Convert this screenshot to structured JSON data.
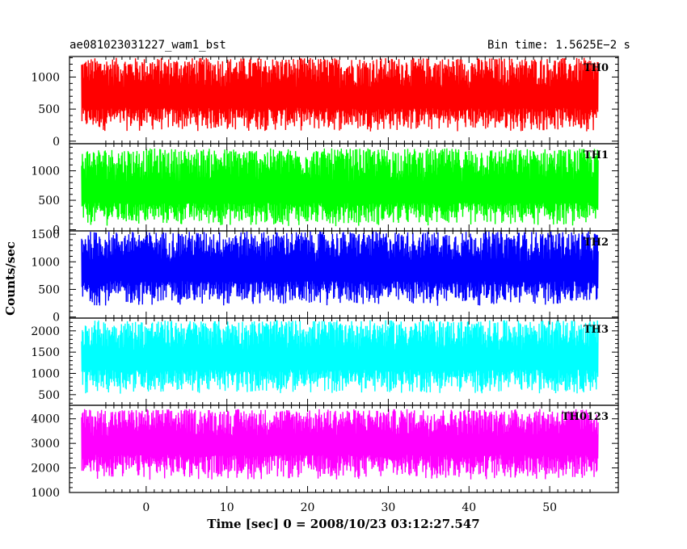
{
  "header": {
    "left_title": "ae081023031227_wam1_bst",
    "right_title": "Bin time: 1.5625E−2 s"
  },
  "chart_data": {
    "type": "line",
    "title": "ae081023031227_wam1_bst",
    "subtitle": "Bin time: 1.5625E−2 s",
    "xlabel": "Time [sec] 0 = 2008/10/23 03:12:27.547",
    "ylabel": "Counts/sec",
    "xlim": [
      -9.5,
      58.5
    ],
    "data_xrange": [
      -8,
      56
    ],
    "x_ticks": [
      0,
      10,
      20,
      30,
      40,
      50
    ],
    "grid": false,
    "legend": "per-panel label at top-right",
    "panels": [
      {
        "name": "TH0",
        "color": "#ff0000",
        "ylim": [
          -40,
          1320
        ],
        "y_ticks": [
          0,
          500,
          1000
        ],
        "baseline": 150,
        "mean": 560,
        "max": 1300
      },
      {
        "name": "TH1",
        "color": "#00ff00",
        "ylim": [
          -20,
          1460
        ],
        "y_ticks": [
          0,
          500,
          1000
        ],
        "baseline": 60,
        "mean": 500,
        "max": 1380
      },
      {
        "name": "TH2",
        "color": "#0000ff",
        "ylim": [
          -20,
          1560
        ],
        "y_ticks": [
          0,
          500,
          1000,
          1500
        ],
        "baseline": 200,
        "mean": 700,
        "max": 1550
      },
      {
        "name": "TH3",
        "color": "#00ffff",
        "ylim": [
          250,
          2300
        ],
        "y_ticks": [
          500,
          1000,
          1500,
          2000
        ],
        "baseline": 520,
        "mean": 1150,
        "max": 2250
      },
      {
        "name": "TH0123",
        "color": "#ff00ff",
        "ylim": [
          1000,
          4550
        ],
        "y_ticks": [
          1000,
          2000,
          3000,
          4000
        ],
        "baseline": 1500,
        "mean": 2650,
        "max": 4400
      }
    ]
  }
}
